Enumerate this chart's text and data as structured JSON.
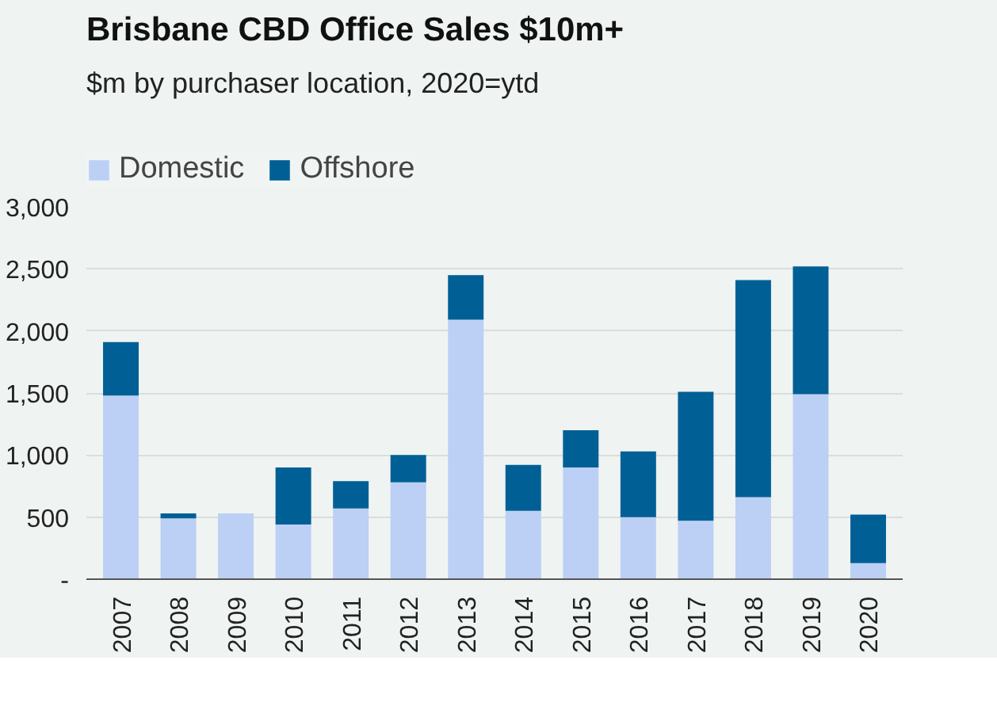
{
  "chart_data": {
    "type": "bar",
    "title": "Brisbane CBD Office Sales $10m+",
    "subtitle": "$m by purchaser location, 2020=ytd",
    "categories": [
      "2007",
      "2008",
      "2009",
      "2010",
      "2011",
      "2012",
      "2013",
      "2014",
      "2015",
      "2016",
      "2017",
      "2018",
      "2019",
      "2020"
    ],
    "stacked": true,
    "series": [
      {
        "name": "Domestic",
        "color": "#bcd0f5",
        "values": [
          1480,
          490,
          530,
          440,
          570,
          780,
          2090,
          550,
          900,
          500,
          470,
          660,
          1490,
          130
        ]
      },
      {
        "name": "Offshore",
        "color": "#006096",
        "values": [
          430,
          40,
          0,
          460,
          220,
          220,
          360,
          370,
          300,
          530,
          1040,
          1750,
          1030,
          390
        ]
      }
    ],
    "ylim": [
      0,
      3000
    ],
    "yticks": [
      {
        "value": 0,
        "label": "-"
      },
      {
        "value": 500,
        "label": "500"
      },
      {
        "value": 1000,
        "label": "1,000"
      },
      {
        "value": 1500,
        "label": "1,500"
      },
      {
        "value": 2000,
        "label": "2,000"
      },
      {
        "value": 2500,
        "label": "2,500"
      },
      {
        "value": 3000,
        "label": "3,000"
      }
    ],
    "grid": "y",
    "legend": "top left"
  }
}
